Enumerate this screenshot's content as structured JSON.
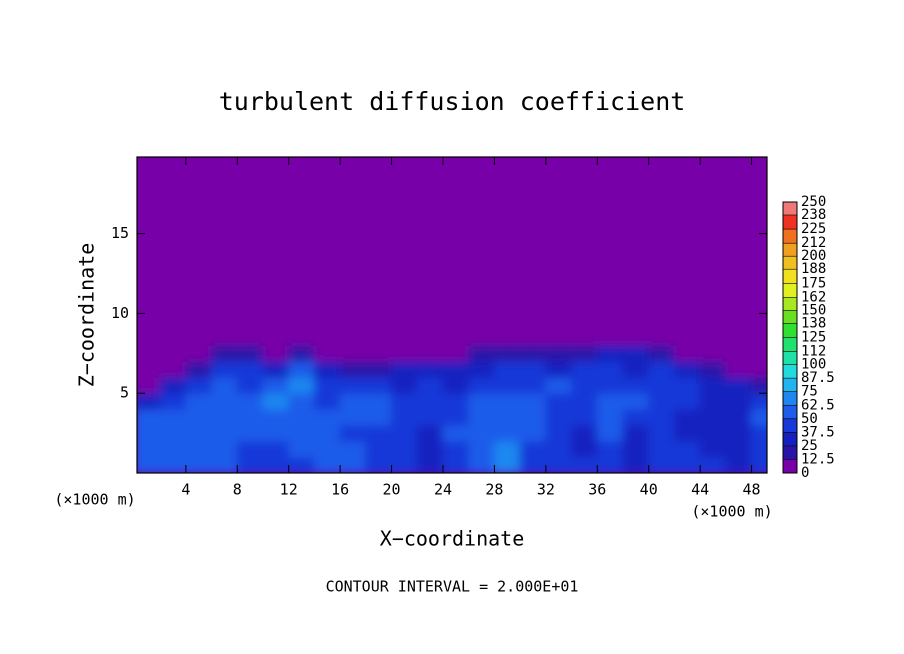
{
  "chart_data": {
    "type": "heatmap",
    "title": "turbulent diffusion coefficient",
    "x_label": "X−coordinate",
    "y_label": "Z−coordinate",
    "unit_labels": [
      "(×1000 m)",
      "(×1000 m)"
    ],
    "footnote": "CONTOUR INTERVAL = 2.000E+01",
    "xlim": [
      0.2,
      49.2
    ],
    "ylim": [
      0,
      19.8
    ],
    "xticks": [
      4,
      8,
      12,
      16,
      20,
      24,
      28,
      32,
      36,
      40,
      44,
      48
    ],
    "yticks": [
      5,
      10,
      15
    ],
    "x": [
      1,
      3,
      5,
      7,
      9,
      11,
      13,
      15,
      17,
      19,
      21,
      23,
      25,
      27,
      29,
      31,
      33,
      35,
      37,
      39,
      41,
      43,
      45,
      47,
      49
    ],
    "y": [
      0.5,
      1.5,
      2.5,
      3.5,
      4.5,
      5.5,
      6.5,
      7.5,
      8.5
    ],
    "z": [
      [
        55,
        60,
        55,
        50,
        45,
        40,
        45,
        60,
        50,
        45,
        40,
        35,
        40,
        55,
        70,
        45,
        40,
        45,
        40,
        35,
        40,
        45,
        40,
        35,
        45
      ],
      [
        60,
        60,
        55,
        50,
        45,
        40,
        50,
        55,
        50,
        45,
        40,
        35,
        45,
        60,
        65,
        45,
        40,
        35,
        40,
        35,
        45,
        40,
        35,
        35,
        45
      ],
      [
        60,
        55,
        60,
        55,
        50,
        50,
        55,
        50,
        45,
        45,
        40,
        35,
        50,
        60,
        55,
        50,
        40,
        35,
        50,
        35,
        40,
        30,
        35,
        30,
        45
      ],
      [
        50,
        55,
        60,
        60,
        55,
        60,
        60,
        55,
        50,
        50,
        45,
        40,
        45,
        55,
        60,
        55,
        45,
        40,
        60,
        45,
        40,
        30,
        30,
        30,
        50
      ],
      [
        30,
        45,
        50,
        55,
        55,
        65,
        60,
        45,
        55,
        50,
        45,
        40,
        40,
        50,
        50,
        50,
        45,
        45,
        55,
        50,
        45,
        40,
        35,
        35,
        45
      ],
      [
        10,
        30,
        40,
        50,
        45,
        50,
        65,
        40,
        40,
        45,
        35,
        40,
        35,
        40,
        40,
        45,
        50,
        45,
        45,
        40,
        45,
        40,
        35,
        30,
        15
      ],
      [
        5,
        5,
        15,
        40,
        45,
        30,
        55,
        30,
        15,
        15,
        25,
        35,
        30,
        35,
        40,
        40,
        35,
        40,
        40,
        35,
        40,
        30,
        20,
        10,
        5
      ],
      [
        3,
        3,
        5,
        15,
        20,
        10,
        20,
        10,
        5,
        5,
        5,
        10,
        10,
        15,
        15,
        20,
        20,
        20,
        25,
        25,
        20,
        10,
        5,
        3,
        3
      ],
      [
        3,
        3,
        3,
        5,
        5,
        3,
        5,
        5,
        3,
        3,
        3,
        3,
        3,
        3,
        3,
        5,
        5,
        5,
        5,
        5,
        3,
        3,
        3,
        3,
        3
      ]
    ],
    "colorbar_ticks": [
      0,
      12.5,
      25,
      37.5,
      50,
      62.5,
      75,
      87.5,
      100,
      112,
      125,
      138,
      150,
      162,
      175,
      188,
      200,
      212,
      225,
      238,
      250
    ],
    "colors": [
      "#7800a8",
      "#2a14a8",
      "#1420c0",
      "#1838d8",
      "#1e5cea",
      "#1e88f0",
      "#20b4f0",
      "#20dcdc",
      "#20e0a8",
      "#20e070",
      "#30e030",
      "#68e020",
      "#a8e820",
      "#e0f020",
      "#f0e020",
      "#f0c020",
      "#f0a020",
      "#f07020",
      "#f03020",
      "#f07878"
    ]
  }
}
